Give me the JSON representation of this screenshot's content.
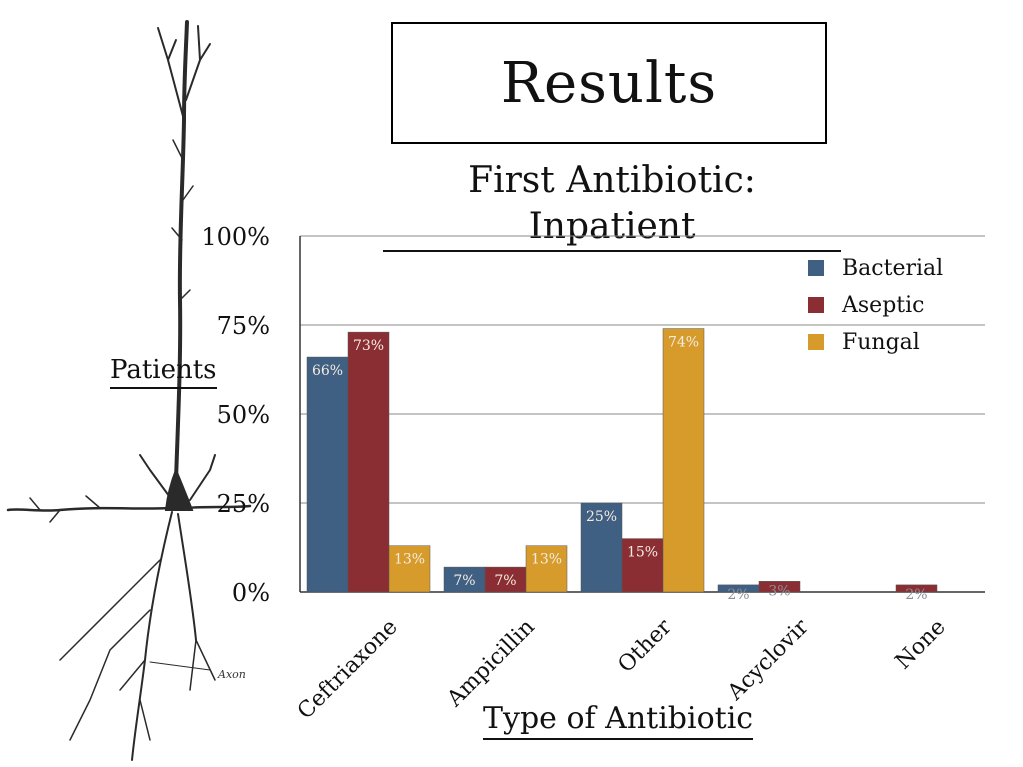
{
  "slide_title": "Results",
  "chart_data": {
    "type": "bar",
    "title": "First Antibiotic:  Inpatient",
    "xlabel": "Type of Antibiotic",
    "ylabel": "Patients",
    "categories": [
      "Ceftriaxone",
      "Ampicillin",
      "Other",
      "Acyclovir",
      "None"
    ],
    "series": [
      {
        "name": "Bacterial",
        "color": "#3f5f83",
        "values": [
          66,
          7,
          25,
          2,
          0
        ],
        "labels": [
          "66%",
          "7%",
          "25%",
          "2%",
          ""
        ]
      },
      {
        "name": "Aseptic",
        "color": "#8b2e33",
        "values": [
          73,
          7,
          15,
          3,
          2
        ],
        "labels": [
          "73%",
          "7%",
          "15%",
          "3%",
          "2%"
        ]
      },
      {
        "name": "Fungal",
        "color": "#d79b2c",
        "values": [
          13,
          13,
          74,
          0,
          0
        ],
        "labels": [
          "13%",
          "13%",
          "74%",
          "",
          ""
        ]
      }
    ],
    "ylim": [
      0,
      100
    ],
    "yticks": [
      0,
      25,
      50,
      75,
      100
    ],
    "ytick_labels": [
      "0%",
      "25%",
      "50%",
      "75%",
      "100%"
    ],
    "grid": true,
    "legend_position": "top-right"
  },
  "illustration": {
    "label": "Axon"
  }
}
